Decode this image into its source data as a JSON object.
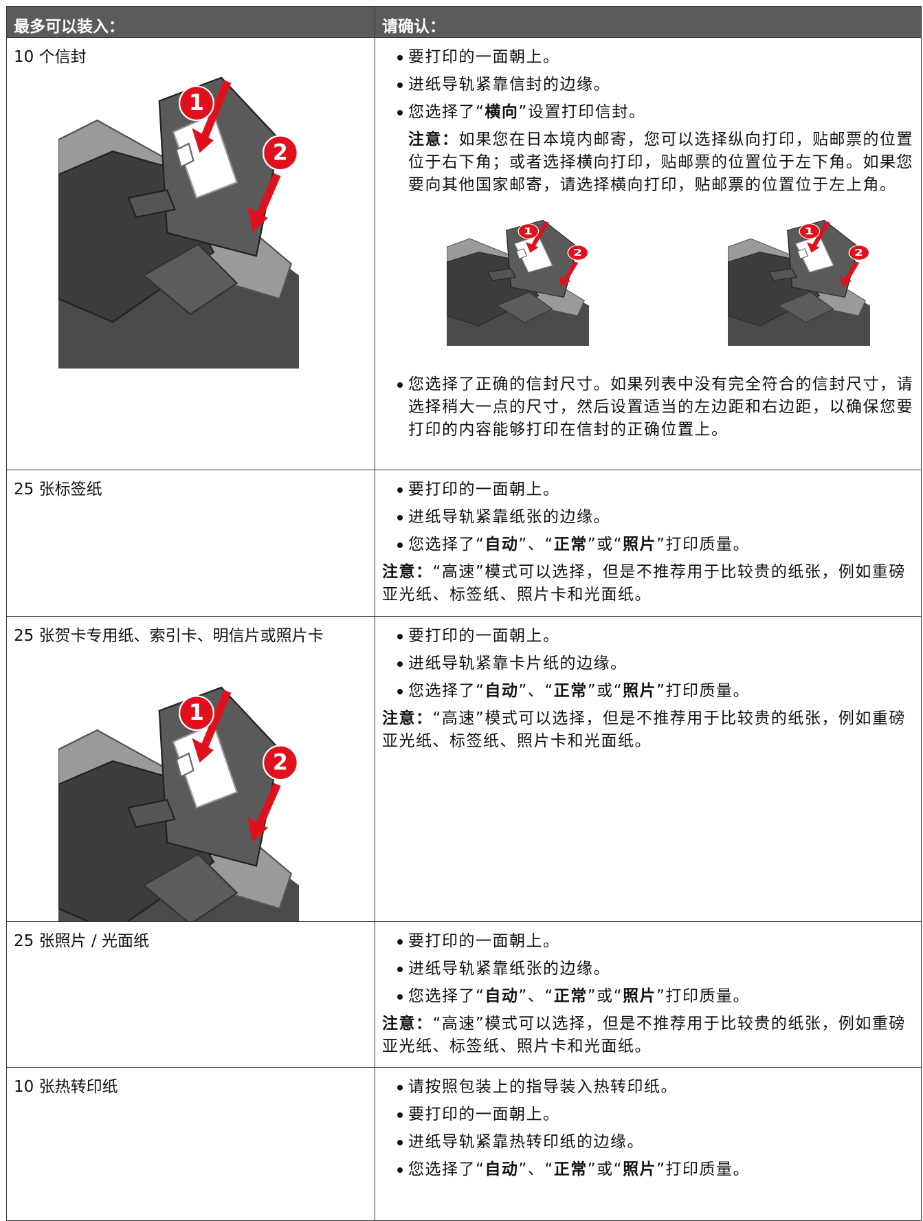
{
  "header": {
    "left": "最多可以装入：",
    "right": "请确认："
  },
  "callouts": [
    "1",
    "2"
  ],
  "rows": [
    {
      "label": "10 个信封",
      "bullets": [
        [
          "要打印的一面朝上。"
        ],
        [
          "进纸导轨紧靠信封的边缘。"
        ],
        [
          "您选择了“",
          "横向",
          "”设置打印信封。"
        ]
      ],
      "note": [
        "注意：",
        "如果您在日本境内邮寄，您可以选择纵向打印，贴邮票的位置位于右下角；或者选择横向打印，贴邮票的位置位于左下角。如果您要向其他国家邮寄，请选择横向打印，贴邮票的位置位于左上角。"
      ],
      "bullets_after": [
        [
          "您选择了正确的信封尺寸。如果列表中没有完全符合的信封尺寸，请选择稍大一点的尺寸，然后设置适当的左边距和右边距，以确保您要打印的内容能够打印在信封的正确位置上。"
        ]
      ]
    },
    {
      "label": "25 张标签纸",
      "bullets": [
        [
          "要打印的一面朝上。"
        ],
        [
          "进纸导轨紧靠纸张的边缘。"
        ],
        [
          "您选择了“",
          "自动",
          "”、“",
          "正常",
          "”或“",
          "照片",
          "”打印质量。"
        ]
      ],
      "note": [
        "注意：",
        "“高速”模式可以选择，但是不推荐用于比较贵的纸张，例如重磅亚光纸、标签纸、照片卡和光面纸。"
      ]
    },
    {
      "label": "25 张贺卡专用纸、索引卡、明信片或照片卡",
      "bullets": [
        [
          "要打印的一面朝上。"
        ],
        [
          "进纸导轨紧靠卡片纸的边缘。"
        ],
        [
          "您选择了“",
          "自动",
          "”、“",
          "正常",
          "”或“",
          "照片",
          "”打印质量。"
        ]
      ],
      "note": [
        "注意：",
        "“高速”模式可以选择，但是不推荐用于比较贵的纸张，例如重磅亚光纸、标签纸、照片卡和光面纸。"
      ]
    },
    {
      "label": "25 张照片 / 光面纸",
      "bullets": [
        [
          "要打印的一面朝上。"
        ],
        [
          "进纸导轨紧靠纸张的边缘。"
        ],
        [
          "您选择了“",
          "自动",
          "”、“",
          "正常",
          "”或“",
          "照片",
          "”打印质量。"
        ]
      ],
      "note": [
        "注意：",
        "“高速”模式可以选择，但是不推荐用于比较贵的纸张，例如重磅亚光纸、标签纸、照片卡和光面纸。"
      ]
    },
    {
      "label": "10 张热转印纸",
      "bullets": [
        [
          "请按照包装上的指导装入热转印纸。"
        ],
        [
          "要打印的一面朝上。"
        ],
        [
          "进纸导轨紧靠热转印纸的边缘。"
        ],
        [
          "您选择了“",
          "自动",
          "”、“",
          "正常",
          "”或“",
          "照片",
          "”打印质量。"
        ]
      ]
    }
  ]
}
